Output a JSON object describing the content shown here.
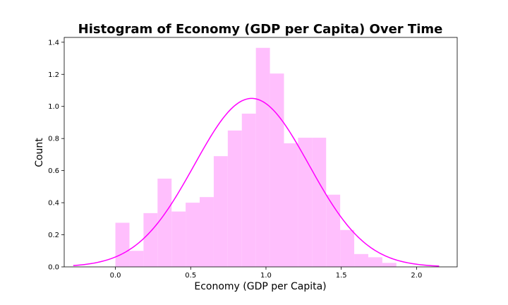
{
  "chart_data": {
    "type": "bar",
    "title": "Histogram of Economy (GDP per Capita) Over Time",
    "xlabel": "Economy (GDP per Capita)",
    "ylabel": "Count",
    "xlim": [
      -0.34,
      2.27
    ],
    "ylim": [
      0,
      1.43
    ],
    "xticks": [
      0.0,
      0.5,
      1.0,
      1.5,
      2.0
    ],
    "xtick_labels": [
      "0.0",
      "0.5",
      "1.0",
      "1.5",
      "2.0"
    ],
    "yticks": [
      0.0,
      0.2,
      0.4,
      0.6,
      0.8,
      1.0,
      1.2,
      1.4
    ],
    "ytick_labels": [
      "0.0",
      "0.2",
      "0.4",
      "0.6",
      "0.8",
      "1.0",
      "1.2",
      "1.4"
    ],
    "grid": false,
    "bin_width": 0.0933,
    "bin_edges": [
      0.0,
      0.0933,
      0.1866,
      0.2799,
      0.3732,
      0.4665,
      0.5598,
      0.6531,
      0.7464,
      0.8397,
      0.933,
      1.0263,
      1.1196,
      1.2129,
      1.3062,
      1.3995,
      1.4928,
      1.5861,
      1.6794,
      1.7727,
      1.866
    ],
    "values": [
      0.275,
      0.1,
      0.335,
      0.55,
      0.345,
      0.4,
      0.435,
      0.69,
      0.85,
      0.955,
      1.365,
      1.205,
      0.77,
      0.805,
      0.805,
      0.45,
      0.23,
      0.08,
      0.06,
      0.025
    ],
    "series": [
      {
        "name": "",
        "kind": "histogram",
        "color": "#ffbffd"
      },
      {
        "name": "",
        "kind": "normal-fit",
        "color": "#ff00ff",
        "mean": 0.905,
        "std": 0.38,
        "x_range": [
          -0.28,
          2.15
        ]
      }
    ]
  },
  "colors": {
    "bar": "#ffbffd",
    "curve": "#ff00ff",
    "axes": "#000000"
  }
}
